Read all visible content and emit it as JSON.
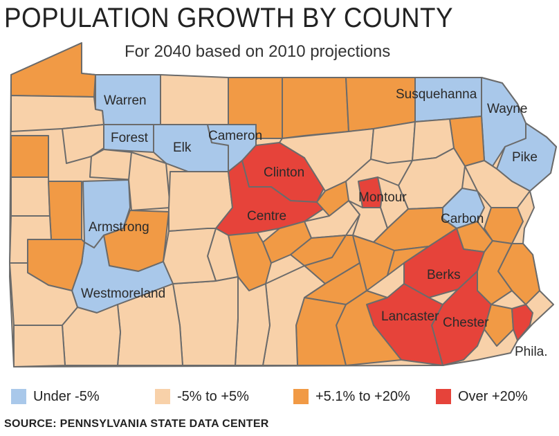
{
  "title": "POPULATION GROWTH BY COUNTY",
  "subtitle": "For 2040 based on 2010 projections",
  "colors": {
    "under_minus_5": "#a9c8ea",
    "minus5_to_5": "#f8d1a9",
    "plus5_to_20": "#f19a45",
    "over_20": "#e6433a",
    "border": "#6b6b6b"
  },
  "county_labels": {
    "warren": "Warren",
    "forest": "Forest",
    "elk": "Elk",
    "cameron": "Cameron",
    "clinton": "Clinton",
    "centre": "Centre",
    "armstrong": "Armstrong",
    "westmoreland": "Westmoreland",
    "susquehanna": "Susquehanna",
    "wayne": "Wayne",
    "pike": "Pike",
    "montour": "Montour",
    "carbon": "Carbon",
    "berks": "Berks",
    "lancaster": "Lancaster",
    "chester": "Chester",
    "phila": "Phila."
  },
  "legend": [
    {
      "label": "Under -5%",
      "color": "#a9c8ea"
    },
    {
      "label": "-5% to +5%",
      "color": "#f8d1a9"
    },
    {
      "label": "+5.1% to +20%",
      "color": "#f19a45"
    },
    {
      "label": "Over +20%",
      "color": "#e6433a"
    }
  ],
  "source": "SOURCE:  PENNSYLVANIA STATE DATA CENTER"
}
